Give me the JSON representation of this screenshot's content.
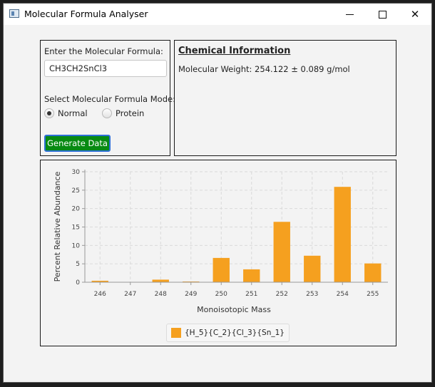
{
  "window": {
    "title": "Molecular Formula Analyser"
  },
  "input_panel": {
    "formula_label": "Enter the Molecular Formula:",
    "formula_value": "CH3CH2SnCl3",
    "mode_label": "Select Molecular Formula Mode:",
    "modes": [
      {
        "label": "Normal",
        "selected": true
      },
      {
        "label": "Protein",
        "selected": false
      }
    ],
    "generate_label": "Generate Data",
    "generate_color": "#078a12"
  },
  "info_panel": {
    "title": "Chemical Information",
    "molecular_weight": "Molecular Weight: 254.122 ± 0.089 g/mol"
  },
  "chart_data": {
    "type": "bar",
    "categories": [
      "246",
      "247",
      "248",
      "249",
      "250",
      "251",
      "252",
      "253",
      "254",
      "255"
    ],
    "series": [
      {
        "name": "{H_5}{C_2}{Cl_3}{Sn_1}",
        "values": [
          0.4,
          0.0,
          0.7,
          0.2,
          6.6,
          3.5,
          16.4,
          7.2,
          25.9,
          5.1
        ],
        "color": "#f5a01f"
      }
    ],
    "xlabel": "Monoisotopic Mass",
    "ylabel": "Percent Relative Abundance",
    "ylim": [
      0,
      30
    ],
    "yticks": [
      0,
      5,
      10,
      15,
      20,
      25,
      30
    ],
    "grid": true,
    "legend": "bottom"
  }
}
